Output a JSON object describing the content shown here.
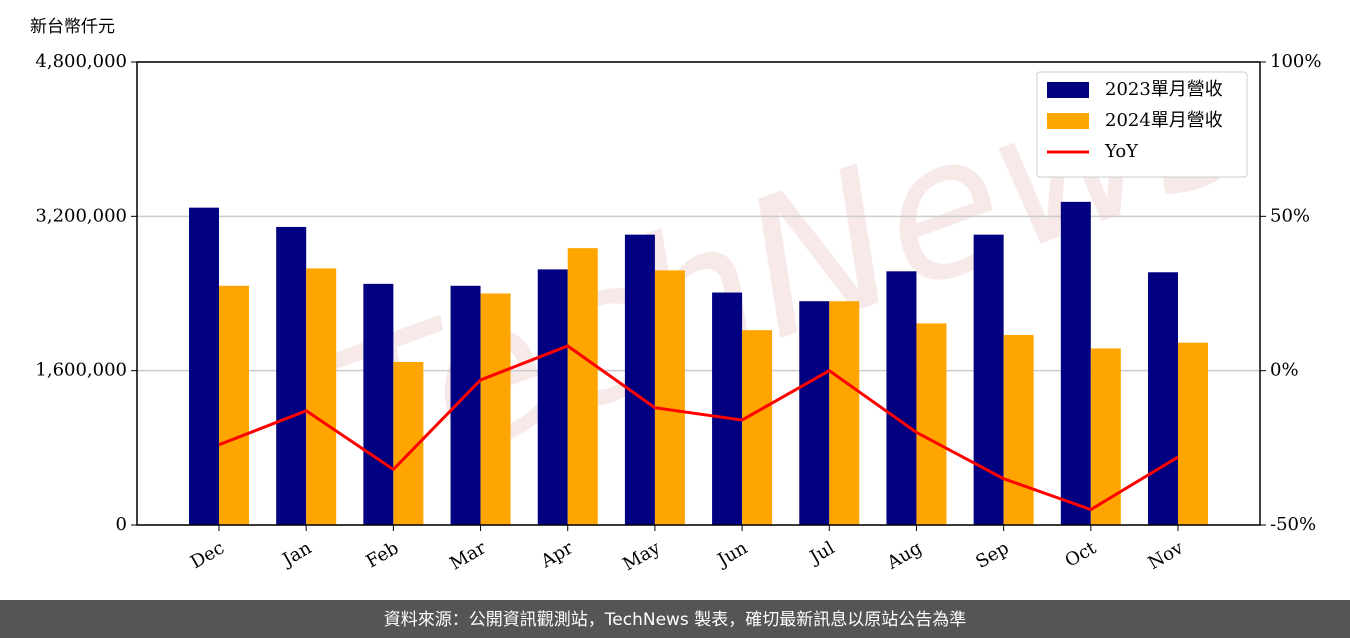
{
  "chart_data": {
    "type": "bar_line",
    "y_label": "新台幣仟元",
    "watermark": "TechNews",
    "footer": "資料來源：公開資訊觀測站，TechNews 製表，確切最新訊息以原站公告為準",
    "categories": [
      "Dec",
      "Jan",
      "Feb",
      "Mar",
      "Apr",
      "May",
      "Jun",
      "Jul",
      "Aug",
      "Sep",
      "Oct",
      "Nov"
    ],
    "series": [
      {
        "name": "2023單月營收",
        "color": "#000080",
        "type": "bar",
        "values": [
          3290000,
          3090000,
          2500000,
          2480000,
          2650000,
          3010000,
          2410000,
          2320000,
          2630000,
          3010000,
          3350000,
          2620000
        ]
      },
      {
        "name": "2024單月營收",
        "color": "#ffa500",
        "type": "bar",
        "values": [
          2480000,
          2660000,
          1690000,
          2400000,
          2870000,
          2640000,
          2020000,
          2320000,
          2090000,
          1970000,
          1830000,
          1890000
        ]
      },
      {
        "name": "YoY",
        "color": "#ff0000",
        "type": "line",
        "axis": "y2",
        "values": [
          -24,
          -13,
          -32,
          -3,
          8,
          -12,
          -16,
          0,
          -20,
          -35,
          -45,
          -28
        ]
      }
    ],
    "ylim": [
      0,
      4800000
    ],
    "yticks": [
      0,
      {
        "value": 1600000,
        "label": "1,600,000"
      },
      {
        "value": 3200000,
        "label": "3,200,000"
      },
      {
        "value": 4800000,
        "label": "4,800,000"
      }
    ],
    "y2lim": [
      -50,
      100
    ],
    "y2ticks": [
      {
        "value": -50,
        "label": "-50%"
      },
      {
        "value": 0,
        "label": "0%"
      },
      {
        "value": 50,
        "label": "50%"
      },
      {
        "value": 100,
        "label": "100%"
      }
    ],
    "grid": true,
    "legend": "upper right"
  }
}
